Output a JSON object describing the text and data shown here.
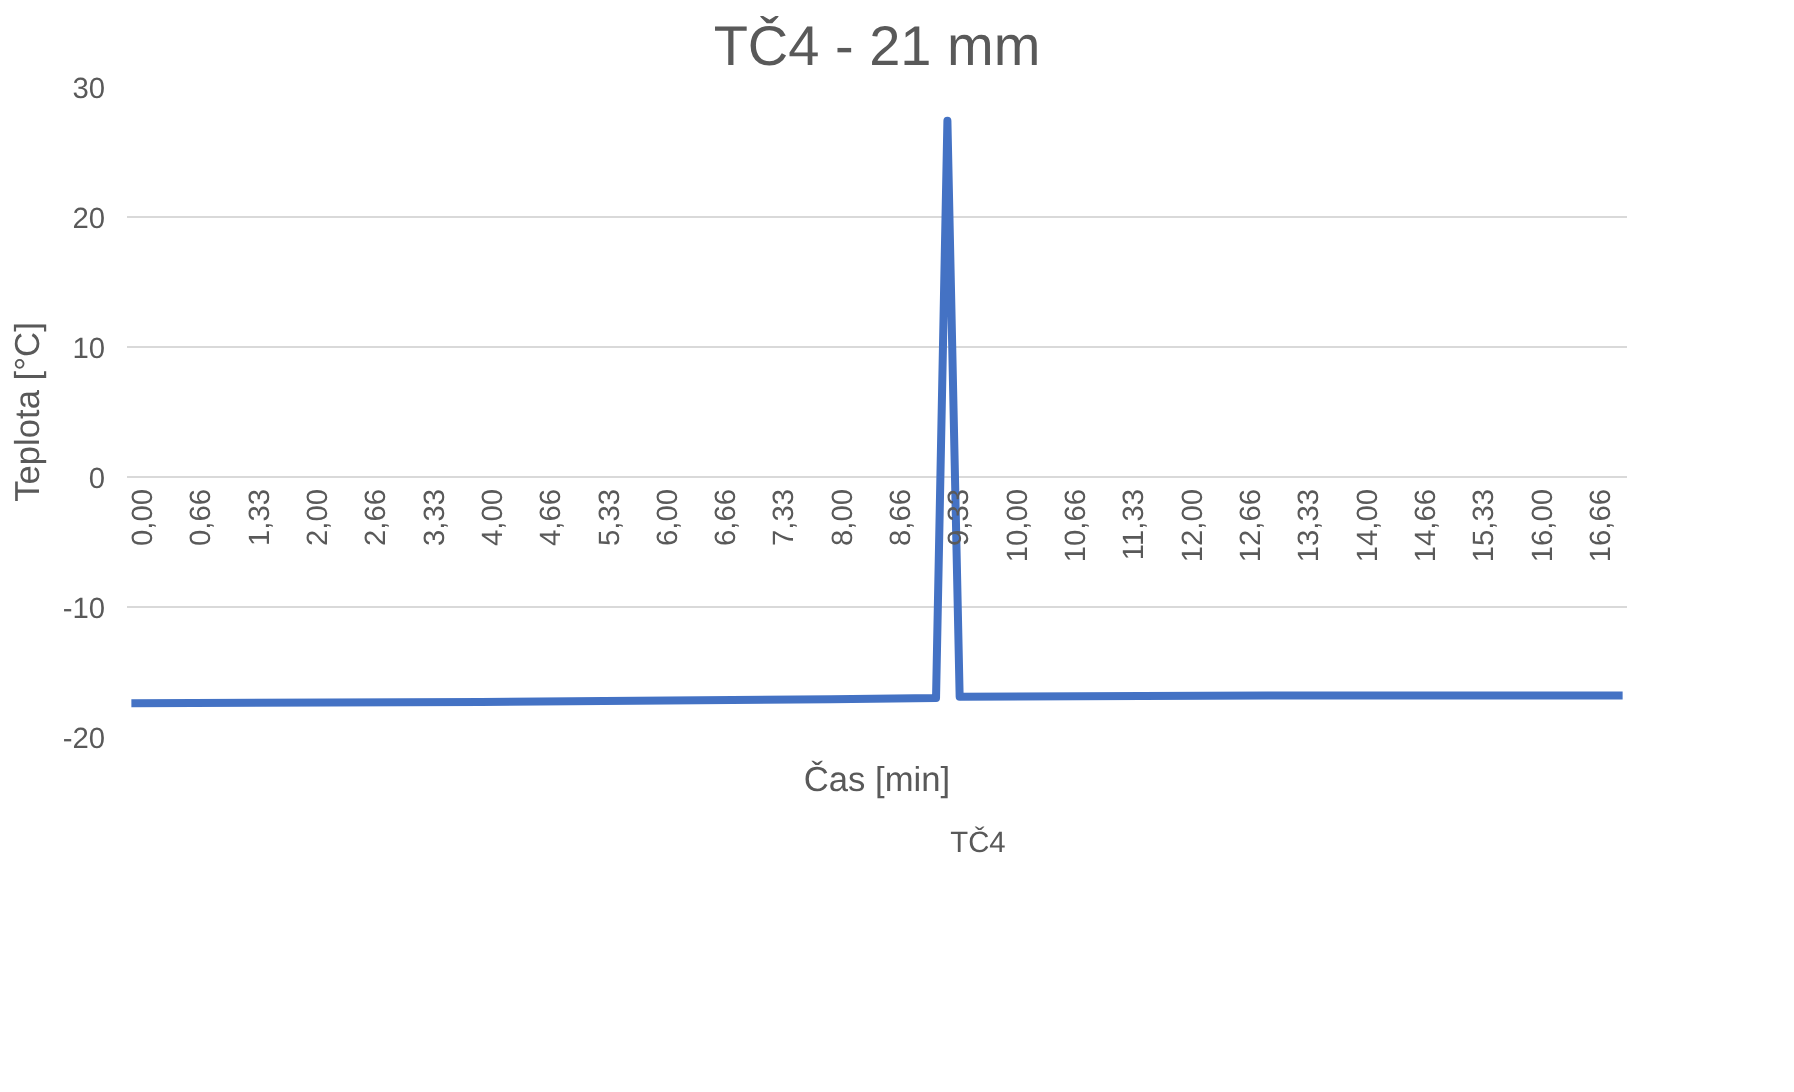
{
  "chart_data": {
    "type": "line",
    "title": "TČ4 - 21 mm",
    "xlabel": "Čas [min]",
    "ylabel": "Teplota [°C]",
    "series": [
      {
        "name": "TČ4",
        "color": "#4472c4",
        "x": [
          0,
          4,
          8,
          9.2,
          9.33,
          9.47,
          13,
          17.05
        ],
        "values": [
          -17.4,
          -17.3,
          -17.1,
          -17.0,
          27.4,
          -16.9,
          -16.8,
          -16.8
        ]
      }
    ],
    "xlim": [
      -0.05,
      17.1
    ],
    "xticks": [
      {
        "value": 0,
        "label": "0,00"
      },
      {
        "value": 0.66,
        "label": "0,66"
      },
      {
        "value": 1.33,
        "label": "1,33"
      },
      {
        "value": 2,
        "label": "2,00"
      },
      {
        "value": 2.66,
        "label": "2,66"
      },
      {
        "value": 3.33,
        "label": "3,33"
      },
      {
        "value": 4,
        "label": "4,00"
      },
      {
        "value": 4.66,
        "label": "4,66"
      },
      {
        "value": 5.33,
        "label": "5,33"
      },
      {
        "value": 6,
        "label": "6,00"
      },
      {
        "value": 6.66,
        "label": "6,66"
      },
      {
        "value": 7.33,
        "label": "7,33"
      },
      {
        "value": 8,
        "label": "8,00"
      },
      {
        "value": 8.66,
        "label": "8,66"
      },
      {
        "value": 9.33,
        "label": "9,33"
      },
      {
        "value": 10,
        "label": "10,00"
      },
      {
        "value": 10.66,
        "label": "10,66"
      },
      {
        "value": 11.33,
        "label": "11,33"
      },
      {
        "value": 12,
        "label": "12,00"
      },
      {
        "value": 12.66,
        "label": "12,66"
      },
      {
        "value": 13.33,
        "label": "13,33"
      },
      {
        "value": 14,
        "label": "14,00"
      },
      {
        "value": 14.66,
        "label": "14,66"
      },
      {
        "value": 15.33,
        "label": "15,33"
      },
      {
        "value": 16,
        "label": "16,00"
      },
      {
        "value": 16.66,
        "label": "16,66"
      }
    ],
    "ylim": [
      -20,
      30
    ],
    "yticks": [
      -20,
      -10,
      0,
      10,
      20,
      30
    ],
    "grid": "y",
    "legend": "bottom",
    "marker": "none",
    "line_style": "solid"
  }
}
